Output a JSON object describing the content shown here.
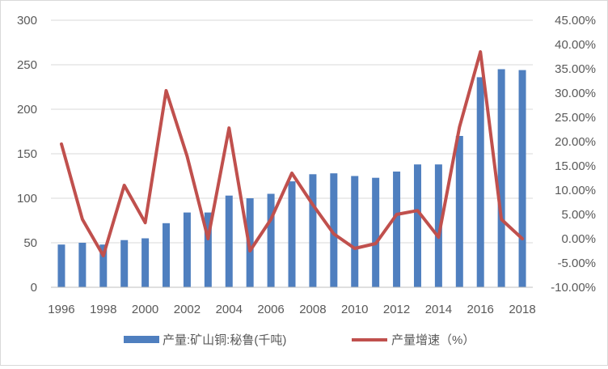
{
  "chart_data": {
    "type": "bar+line",
    "categories": [
      "1996",
      "1997",
      "1998",
      "1999",
      "2000",
      "2001",
      "2002",
      "2003",
      "2004",
      "2005",
      "2006",
      "2007",
      "2008",
      "2009",
      "2010",
      "2011",
      "2012",
      "2013",
      "2014",
      "2015",
      "2016",
      "2017",
      "2018"
    ],
    "x_tick_labels": [
      "1996",
      "1998",
      "2000",
      "2002",
      "2004",
      "2006",
      "2008",
      "2010",
      "2012",
      "2014",
      "2016",
      "2018"
    ],
    "left_axis": {
      "ylim": [
        0,
        300
      ],
      "ticks": [
        "0",
        "50",
        "100",
        "150",
        "200",
        "250",
        "300"
      ]
    },
    "right_axis": {
      "ylim": [
        -0.1,
        0.45
      ],
      "ticks": [
        "-10.00%",
        "-5.00%",
        "0.00%",
        "5.00%",
        "10.00%",
        "15.00%",
        "20.00%",
        "25.00%",
        "30.00%",
        "35.00%",
        "40.00%",
        "45.00%"
      ]
    },
    "grid": "horizontal",
    "legend_position": "bottom",
    "colors": {
      "bar": "#4f7fbf",
      "line": "#c0504d",
      "grid": "#d9d9d9",
      "axis": "#bfbfbf"
    },
    "series": [
      {
        "name": "产量:矿山铜:秘鲁(千吨)",
        "kind": "bar",
        "axis": "left",
        "values": [
          48,
          50,
          48,
          53,
          55,
          72,
          84,
          84,
          103,
          100,
          105,
          119,
          127,
          128,
          125,
          123,
          130,
          138,
          138,
          170,
          236,
          245,
          244
        ]
      },
      {
        "name": "产量增速（%）",
        "kind": "line",
        "axis": "right",
        "values": [
          0.195,
          0.04,
          -0.035,
          0.11,
          0.033,
          0.305,
          0.17,
          0.0,
          0.228,
          -0.025,
          0.04,
          0.135,
          0.07,
          0.01,
          -0.02,
          -0.01,
          0.05,
          0.058,
          0.003,
          0.23,
          0.385,
          0.04,
          0.0
        ]
      }
    ]
  }
}
